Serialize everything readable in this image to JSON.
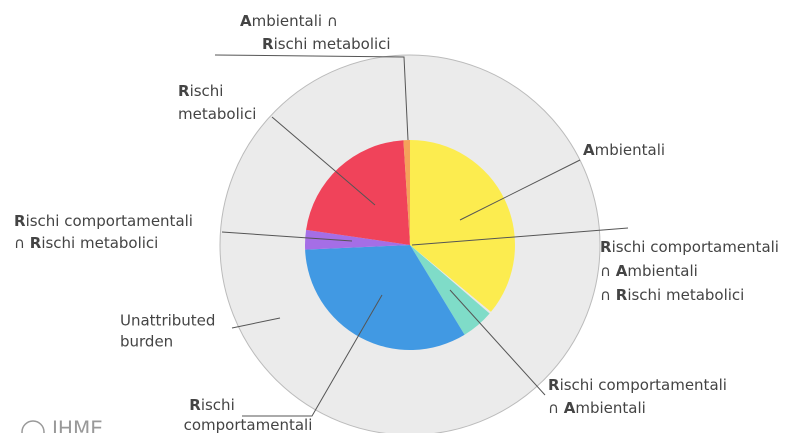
{
  "chart_data": {
    "type": "pie",
    "categories": [
      [
        "Ambientali"
      ],
      [
        "Rischi comportamentali",
        "∩ Ambientali",
        "∩ Rischi metabolici"
      ],
      [
        "Rischi comportamentali",
        "∩ Ambientali"
      ],
      [
        "Rischi",
        "comportamentali"
      ],
      [
        "Rischi comportamentali",
        "∩ Rischi metabolici"
      ],
      [
        "Rischi",
        "metabolici"
      ],
      [
        "Ambientali ∩",
        "Rischi metabolici"
      ]
    ],
    "values": [
      36,
      0.3,
      5,
      33,
      3,
      21.7,
      1
    ],
    "colors": [
      "#fcec4f",
      "#e8e8e8",
      "#7fdcc8",
      "#4199e3",
      "#a56ee6",
      "#f0435a",
      "#f5a25a"
    ],
    "ring_label": [
      "Unattributed",
      "burden"
    ],
    "ring_color": "#ebebeb",
    "logo": "IHME"
  }
}
